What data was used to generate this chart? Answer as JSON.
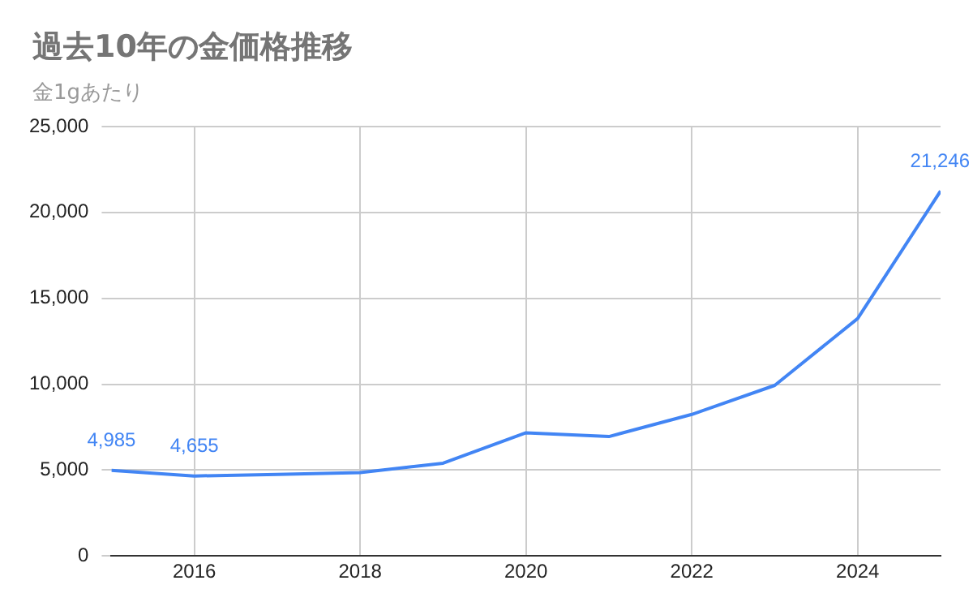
{
  "chart_data": {
    "type": "line",
    "title": "過去10年の金価格推移",
    "subtitle": "金1gあたり",
    "x": [
      2015,
      2016,
      2017,
      2018,
      2019,
      2020,
      2021,
      2022,
      2023,
      2024,
      2025
    ],
    "series": [
      {
        "color": "#4285f4",
        "values": [
          4985,
          4655,
          4750,
          4850,
          5400,
          7170,
          6950,
          8240,
          9930,
          13820,
          21246
        ],
        "value_labels": [
          "4,985",
          "4,655",
          null,
          null,
          null,
          null,
          null,
          null,
          null,
          null,
          "21,246"
        ]
      }
    ],
    "xlim": [
      2015,
      2025
    ],
    "xticks": [
      2016,
      2018,
      2020,
      2022,
      2024
    ],
    "ylim": [
      0,
      25000
    ],
    "yticks": [
      {
        "value": 0,
        "label": "0"
      },
      {
        "value": 5000,
        "label": "5,000"
      },
      {
        "value": 10000,
        "label": "10,000"
      },
      {
        "value": 15000,
        "label": "15,000"
      },
      {
        "value": 20000,
        "label": "20,000"
      },
      {
        "value": 25000,
        "label": "25,000"
      }
    ],
    "grid": true,
    "legend": false,
    "marker": "none",
    "line_style": "solid"
  }
}
